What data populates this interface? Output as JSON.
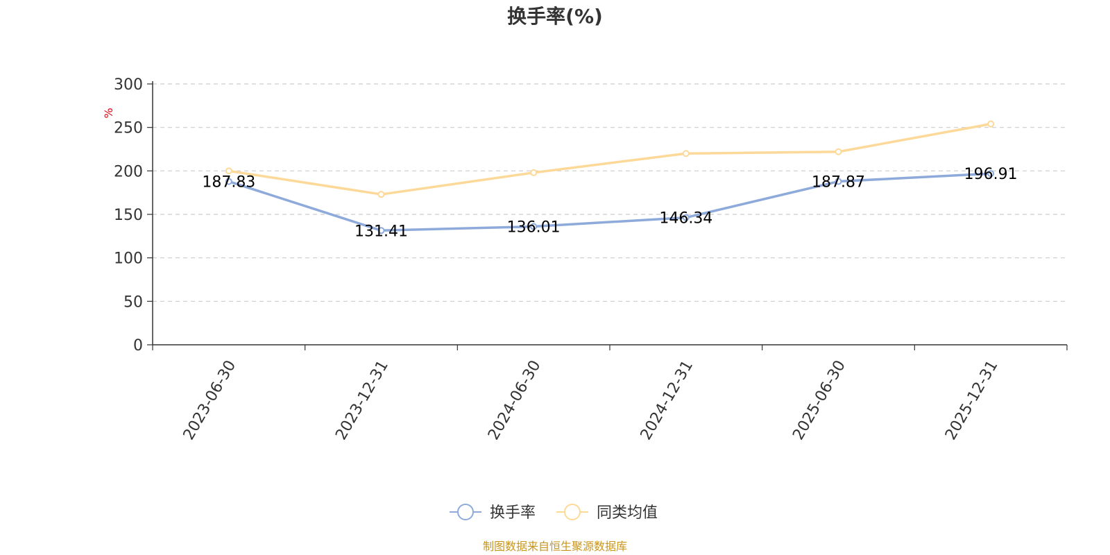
{
  "chart_data": {
    "type": "line",
    "title": "换手率(%)",
    "ylabel": "%",
    "xlabel": "",
    "ylim": [
      0,
      300
    ],
    "yticks": [
      "0",
      "50",
      "100",
      "150",
      "200",
      "250",
      "300"
    ],
    "categories": [
      "2023-06-30",
      "2023-12-31",
      "2024-06-30",
      "2024-12-31",
      "2025-06-30",
      "2025-12-31"
    ],
    "grid": true,
    "legend_position": "bottom",
    "series": [
      {
        "name": "换手率",
        "color": "#8eaadb",
        "values": [
          187.83,
          131.41,
          136.01,
          146.34,
          187.87,
          196.91
        ],
        "labels": [
          "187.83",
          "131.41",
          "136.01",
          "146.34",
          "187.87",
          "196.91"
        ]
      },
      {
        "name": "同类均值",
        "color": "#fdd999",
        "values": [
          200,
          173,
          198,
          220,
          222,
          254
        ]
      }
    ],
    "source": "制图数据来自恒生聚源数据库"
  }
}
